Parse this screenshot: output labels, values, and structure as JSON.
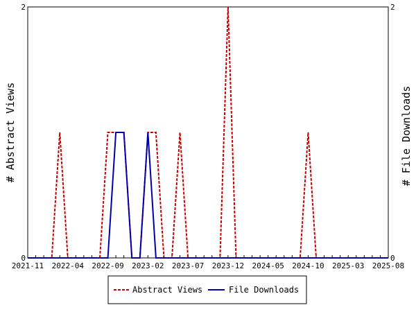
{
  "chart_data": {
    "type": "line",
    "title": "",
    "ylabel_left": "# Abstract Views",
    "ylabel_right": "# File Downloads",
    "ylim": [
      0,
      2
    ],
    "y_ticks": [
      "0",
      "2"
    ],
    "x_range": [
      "2021-11",
      "2025-08"
    ],
    "x_tick_labels": [
      "2021-11",
      "2022-04",
      "2022-09",
      "2023-02",
      "2023-07",
      "2023-12",
      "2024-05",
      "2024-10",
      "2025-03",
      "2025-08"
    ],
    "x": [
      "2021-11",
      "2021-12",
      "2022-01",
      "2022-02",
      "2022-03",
      "2022-04",
      "2022-05",
      "2022-06",
      "2022-07",
      "2022-08",
      "2022-09",
      "2022-10",
      "2022-11",
      "2022-12",
      "2023-01",
      "2023-02",
      "2023-03",
      "2023-04",
      "2023-05",
      "2023-06",
      "2023-07",
      "2023-08",
      "2023-09",
      "2023-10",
      "2023-11",
      "2023-12",
      "2024-01",
      "2024-02",
      "2024-03",
      "2024-04",
      "2024-05",
      "2024-06",
      "2024-07",
      "2024-08",
      "2024-09",
      "2024-10",
      "2024-11",
      "2024-12",
      "2025-01",
      "2025-02",
      "2025-03",
      "2025-04",
      "2025-05",
      "2025-06",
      "2025-07",
      "2025-08"
    ],
    "series": [
      {
        "name": "Abstract Views",
        "color": "#cc0000",
        "style": "dashed",
        "values": [
          0,
          0,
          0,
          0,
          1,
          0,
          0,
          0,
          0,
          0,
          1,
          1,
          1,
          0,
          0,
          1,
          1,
          0,
          0,
          1,
          0,
          0,
          0,
          0,
          0,
          2,
          0,
          0,
          0,
          0,
          0,
          0,
          0,
          0,
          0,
          1,
          0,
          0,
          0,
          0,
          0,
          0,
          0,
          0,
          0,
          0
        ]
      },
      {
        "name": "File Downloads",
        "color": "#0000aa",
        "style": "solid",
        "values": [
          0,
          0,
          0,
          0,
          0,
          0,
          0,
          0,
          0,
          0,
          0,
          1,
          1,
          0,
          0,
          1,
          0,
          0,
          0,
          0,
          0,
          0,
          0,
          0,
          0,
          0,
          0,
          0,
          0,
          0,
          0,
          0,
          0,
          0,
          0,
          0,
          0,
          0,
          0,
          0,
          0,
          0,
          0,
          0,
          0,
          0
        ]
      }
    ],
    "legend_position": "bottom",
    "grid": false
  }
}
